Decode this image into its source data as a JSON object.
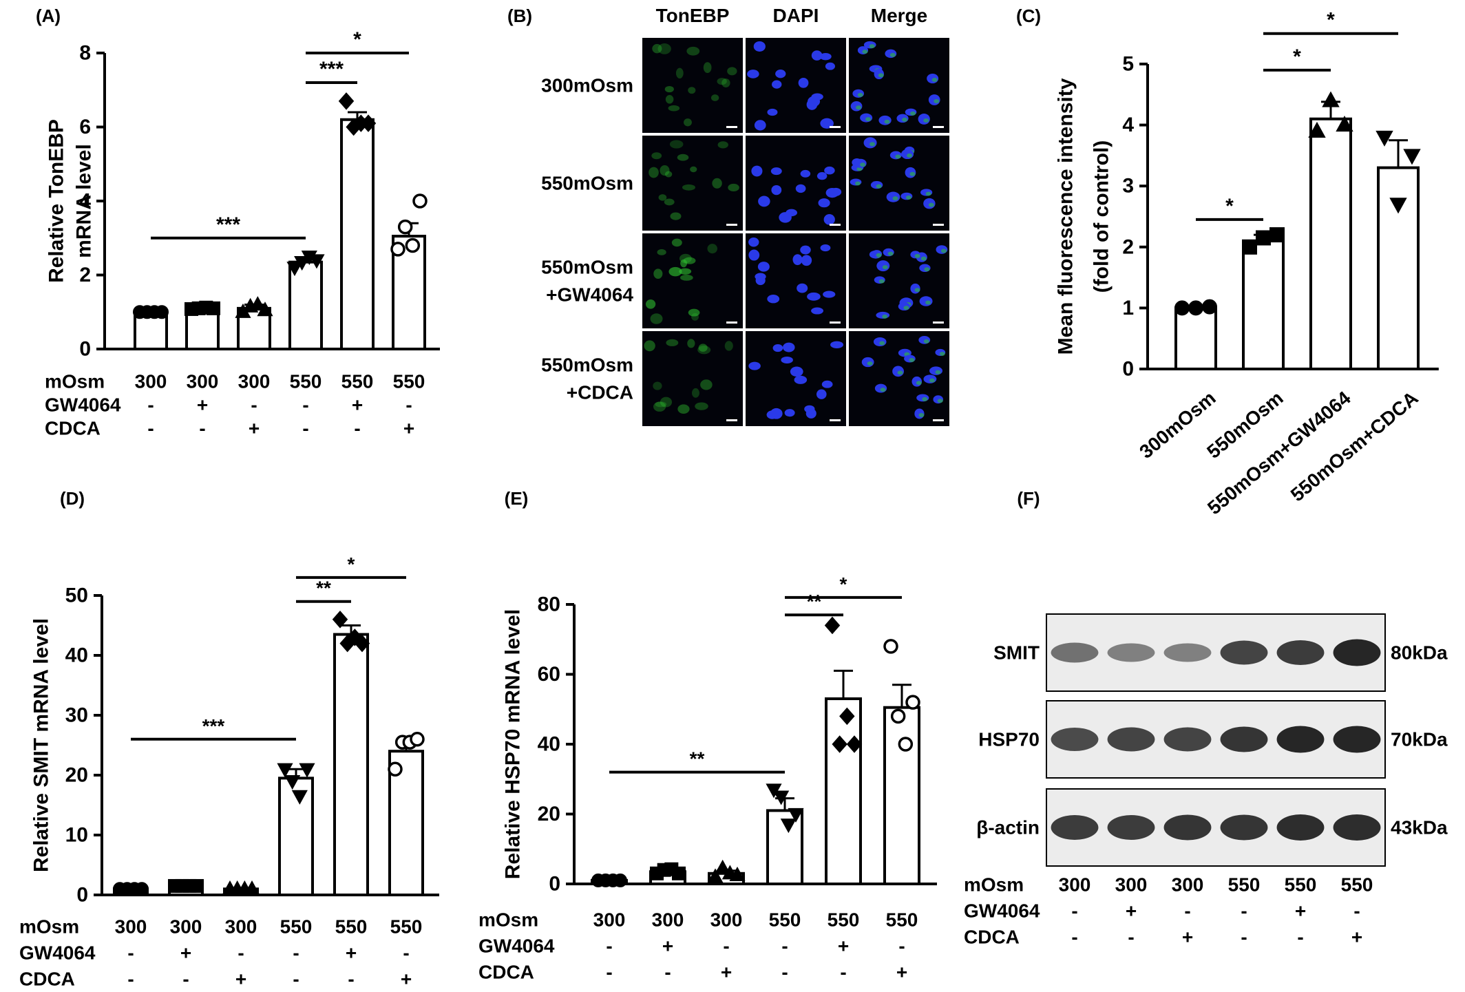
{
  "chart_data": [
    {
      "panel": "(A)",
      "type": "bar",
      "ylabel": [
        "Relative TonEBP",
        "mRNA level"
      ],
      "ylim": [
        0,
        8
      ],
      "yticks": [
        0,
        2,
        4,
        6,
        8
      ],
      "rows": [
        {
          "label": "mOsm",
          "values": [
            "300",
            "300",
            "300",
            "550",
            "550",
            "550"
          ]
        },
        {
          "label": "GW4064",
          "values": [
            "-",
            "+",
            "-",
            "-",
            "+",
            "-"
          ]
        },
        {
          "label": "CDCA",
          "values": [
            "-",
            "-",
            "+",
            "-",
            "-",
            "+"
          ]
        }
      ],
      "values": [
        1.0,
        1.1,
        1.1,
        2.35,
        6.2,
        3.05
      ],
      "errors": [
        0.02,
        0.03,
        0.1,
        0.12,
        0.2,
        0.35
      ],
      "markers": [
        "circle-filled",
        "square-filled",
        "triangle-filled",
        "triangle-down-filled",
        "diamond-filled",
        "circle-open"
      ],
      "points": [
        [
          1.0,
          1.0,
          1.0,
          1.0
        ],
        [
          1.08,
          1.1,
          1.12,
          1.1
        ],
        [
          1.0,
          1.15,
          1.2,
          1.05
        ],
        [
          2.2,
          2.35,
          2.5,
          2.4
        ],
        [
          6.7,
          6.0,
          6.1,
          6.1
        ],
        [
          2.7,
          3.3,
          2.8,
          4.0
        ]
      ],
      "significance": [
        {
          "from": 0,
          "to": 3,
          "y": 3.0,
          "label": "***"
        },
        {
          "from": 3,
          "to": 4,
          "y": 7.2,
          "label": "***"
        },
        {
          "from": 3,
          "to": 5,
          "y": 8.0,
          "label": "*"
        }
      ]
    },
    {
      "panel": "(C)",
      "type": "bar",
      "ylabel": [
        "Mean fluorescence intensity",
        "(fold of control)"
      ],
      "ylim": [
        0,
        5
      ],
      "yticks": [
        0,
        1,
        2,
        3,
        4,
        5
      ],
      "categories": [
        "300mOsm",
        "550mOsm",
        "550mOsm+GW4064",
        "550mOsm+CDCA"
      ],
      "values": [
        1.0,
        2.1,
        4.1,
        3.3
      ],
      "errors": [
        0.04,
        0.1,
        0.28,
        0.45
      ],
      "markers": [
        "circle-filled",
        "square-filled",
        "triangle-filled",
        "triangle-down-filled"
      ],
      "points": [
        [
          1.0,
          1.0,
          1.02
        ],
        [
          2.0,
          2.15,
          2.2
        ],
        [
          3.9,
          4.4,
          4.0
        ],
        [
          3.8,
          2.7,
          3.5
        ]
      ],
      "significance": [
        {
          "from": 0,
          "to": 1,
          "y": 2.45,
          "label": "*"
        },
        {
          "from": 1,
          "to": 2,
          "y": 4.9,
          "label": "*"
        },
        {
          "from": 1,
          "to": 3,
          "y": 5.5,
          "label": "*"
        }
      ]
    },
    {
      "panel": "(D)",
      "type": "bar",
      "ylabel": [
        "Relative SMIT mRNA level"
      ],
      "ylim": [
        0,
        50
      ],
      "yticks": [
        0,
        10,
        20,
        30,
        40,
        50
      ],
      "rows": [
        {
          "label": "mOsm",
          "values": [
            "300",
            "300",
            "300",
            "550",
            "550",
            "550"
          ]
        },
        {
          "label": "GW4064",
          "values": [
            "-",
            "+",
            "-",
            "-",
            "+",
            "-"
          ]
        },
        {
          "label": "CDCA",
          "values": [
            "-",
            "-",
            "+",
            "-",
            "-",
            "+"
          ]
        }
      ],
      "values": [
        1.0,
        1.5,
        1.0,
        19.5,
        43.5,
        24.0
      ],
      "errors": [
        0.05,
        0.1,
        0.1,
        1.5,
        1.5,
        1.8
      ],
      "markers": [
        "circle-filled",
        "square-filled",
        "triangle-filled",
        "triangle-down-filled",
        "diamond-filled",
        "circle-open"
      ],
      "points": [
        [
          1.0,
          1.0,
          1.0,
          1.0
        ],
        [
          1.5,
          1.5,
          1.5,
          1.5
        ],
        [
          1.0,
          1.0,
          1.0,
          1.0
        ],
        [
          21,
          19,
          16.5,
          21
        ],
        [
          46,
          42,
          43,
          42
        ],
        [
          21,
          25.5,
          25.5,
          26
        ]
      ],
      "significance": [
        {
          "from": 0,
          "to": 3,
          "y": 26,
          "label": "***"
        },
        {
          "from": 3,
          "to": 4,
          "y": 49,
          "label": "**"
        },
        {
          "from": 3,
          "to": 5,
          "y": 53,
          "label": "*"
        }
      ]
    },
    {
      "panel": "(E)",
      "type": "bar",
      "ylabel": [
        "Relative HSP70 mRNA level"
      ],
      "ylim": [
        0,
        80
      ],
      "yticks": [
        0,
        20,
        40,
        60,
        80
      ],
      "rows": [
        {
          "label": "mOsm",
          "values": [
            "300",
            "300",
            "300",
            "550",
            "550",
            "550"
          ]
        },
        {
          "label": "GW4064",
          "values": [
            "-",
            "+",
            "-",
            "-",
            "+",
            "-"
          ]
        },
        {
          "label": "CDCA",
          "values": [
            "-",
            "-",
            "+",
            "-",
            "-",
            "+"
          ]
        }
      ],
      "values": [
        1.0,
        3.5,
        3.0,
        21.0,
        53.0,
        50.5
      ],
      "errors": [
        0.2,
        0.6,
        0.8,
        3.5,
        8.0,
        6.5
      ],
      "markers": [
        "circle-filled",
        "square-filled",
        "triangle-filled",
        "triangle-down-filled",
        "diamond-filled",
        "circle-open"
      ],
      "points": [
        [
          1.0,
          1.0,
          1.0,
          1.0
        ],
        [
          3.0,
          4.0,
          4.2,
          3.0
        ],
        [
          2.0,
          4.5,
          3.0,
          2.5
        ],
        [
          27,
          25,
          17,
          20
        ],
        [
          74,
          40,
          48,
          40
        ],
        [
          68,
          48,
          40,
          52
        ]
      ],
      "significance": [
        {
          "from": 0,
          "to": 3,
          "y": 32,
          "label": "**"
        },
        {
          "from": 3,
          "to": 4,
          "y": 77,
          "label": "**"
        },
        {
          "from": 3,
          "to": 5,
          "y": 82,
          "label": "*"
        }
      ]
    }
  ],
  "panels": {
    "A": "(A)",
    "B": "(B)",
    "C": "(C)",
    "D": "(D)",
    "E": "(E)",
    "F": "(F)"
  },
  "microscopy": {
    "columns": [
      "TonEBP",
      "DAPI",
      "Merge"
    ],
    "rows": [
      "300mOsm",
      "550mOsm",
      "550mOsm\n+GW4064",
      "550mOsm\n+CDCA"
    ],
    "colors": {
      "tonebp": "#2fbf2f",
      "dapi": "#2a3ae8",
      "background": "#02030a"
    }
  },
  "western": {
    "bands": [
      {
        "name": "SMIT",
        "size": "80kDa",
        "intensity": [
          0.45,
          0.35,
          0.35,
          0.75,
          0.8,
          0.95
        ]
      },
      {
        "name": "HSP70",
        "size": "70kDa",
        "intensity": [
          0.7,
          0.75,
          0.75,
          0.85,
          0.95,
          0.95
        ]
      },
      {
        "name": "β-actin",
        "size": "43kDa",
        "intensity": [
          0.8,
          0.8,
          0.85,
          0.85,
          0.9,
          0.9
        ]
      }
    ],
    "rows": [
      {
        "label": "mOsm",
        "values": [
          "300",
          "300",
          "300",
          "550",
          "550",
          "550"
        ]
      },
      {
        "label": "GW4064",
        "values": [
          "-",
          "+",
          "-",
          "-",
          "+",
          "-"
        ]
      },
      {
        "label": "CDCA",
        "values": [
          "-",
          "-",
          "+",
          "-",
          "-",
          "+"
        ]
      }
    ]
  }
}
